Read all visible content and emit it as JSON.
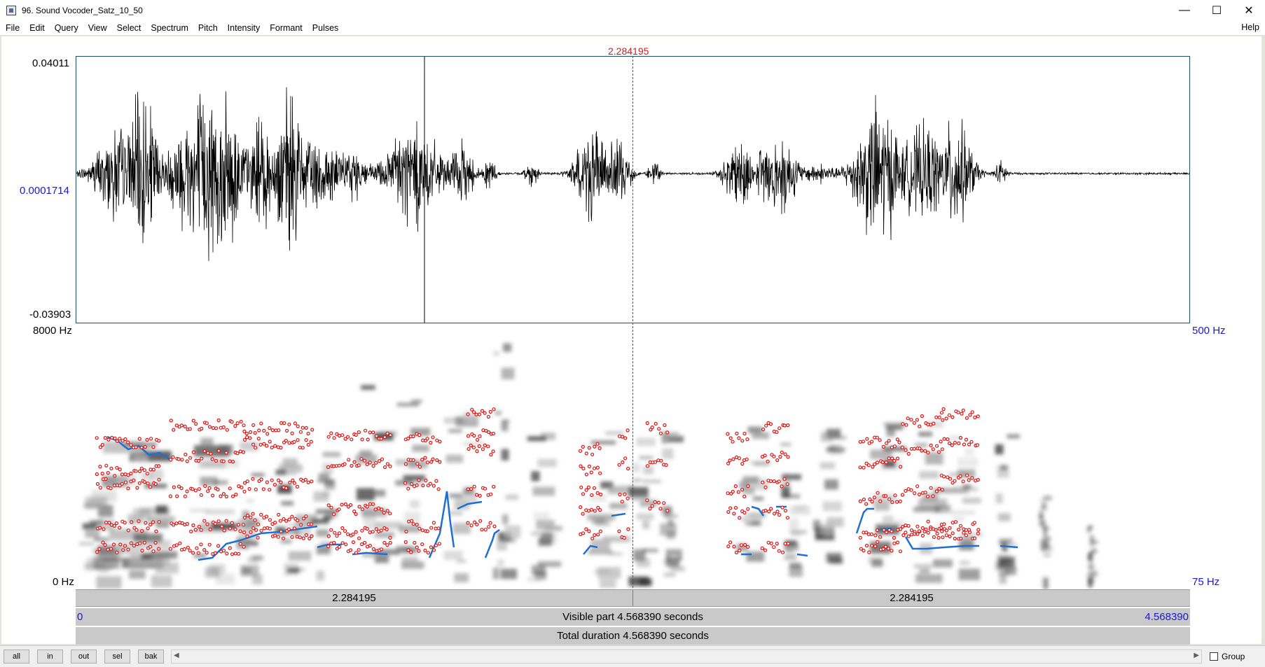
{
  "window": {
    "title": "96. Sound Vocoder_Satz_10_50",
    "minimize": "—",
    "maximize": "☐",
    "close": "✕"
  },
  "menu": {
    "items": [
      "File",
      "Edit",
      "Query",
      "View",
      "Select",
      "Spectrum",
      "Pitch",
      "Intensity",
      "Formant",
      "Pulses"
    ],
    "help": "Help"
  },
  "waveform": {
    "max_label": "0.04011",
    "mid_label": "0.0001714",
    "min_label": "-0.03903"
  },
  "spectrogram": {
    "top_freq_label": "8000 Hz",
    "bottom_freq_label": "0 Hz",
    "pitch_top_label": "500 Hz",
    "pitch_bottom_label": "75 Hz"
  },
  "cursor": {
    "time_label": "2.284195"
  },
  "selection": {
    "left_duration": "2.284195",
    "right_duration": "2.284195"
  },
  "visible": {
    "start": "0",
    "label": "Visible part 4.568390 seconds",
    "end": "4.568390"
  },
  "total": {
    "label": "Total duration 4.568390 seconds"
  },
  "buttons": {
    "all": "all",
    "in": "in",
    "out": "out",
    "sel": "sel",
    "bak": "bak"
  },
  "scroll": {
    "left_arrow": "◀",
    "right_arrow": "▶"
  },
  "group": {
    "label": "Group"
  },
  "colors": {
    "cursor": "#d01c1c",
    "pitch": "#1f6fd1",
    "formant": "#e01010",
    "axis_blue": "#1a1ad0",
    "frame": "#1a4f6a"
  }
}
